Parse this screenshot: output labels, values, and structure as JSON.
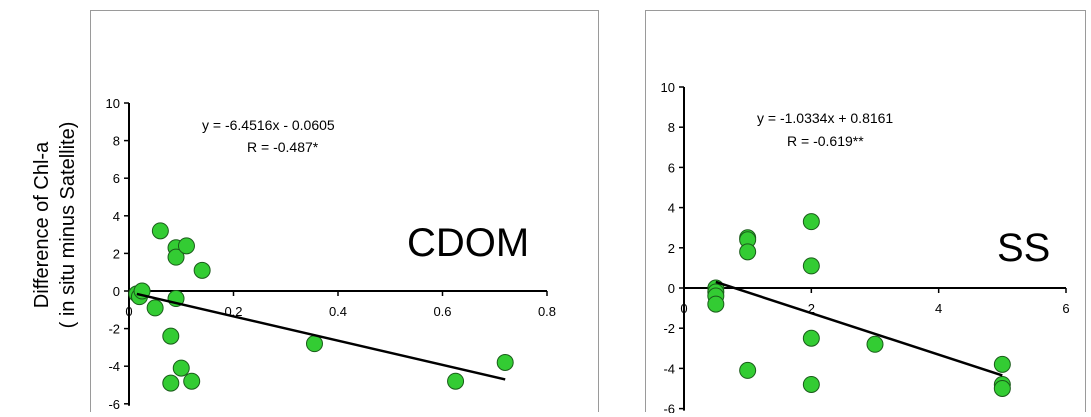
{
  "y_axis_label": {
    "line1": "Difference of Chl-a",
    "line2": "( in situ minus Satellite)"
  },
  "colors": {
    "point_fill": "#33cc33",
    "point_stroke": "#1a5c1a",
    "line": "#000000"
  },
  "chart_data": [
    {
      "type": "scatter",
      "panel_label": "CDOM",
      "equation": "y = -6.4516x - 0.0605",
      "r_text": "R = -0.487*",
      "xlim": [
        0,
        0.8
      ],
      "ylim": [
        -6,
        10
      ],
      "x_ticks": [
        0,
        0.2,
        0.4,
        0.6,
        0.8
      ],
      "x_tick_labels": [
        "0",
        "0.2",
        "0.4",
        "0.6",
        "0.8"
      ],
      "y_ticks": [
        -6,
        -4,
        -2,
        0,
        2,
        4,
        6,
        8,
        10
      ],
      "y_tick_labels": [
        "-6",
        "-4",
        "-2",
        "0",
        "2",
        "4",
        "6",
        "8",
        "10"
      ],
      "points": [
        {
          "x": 0.015,
          "y": -0.15
        },
        {
          "x": 0.02,
          "y": -0.3
        },
        {
          "x": 0.025,
          "y": 0.0
        },
        {
          "x": 0.05,
          "y": -0.9
        },
        {
          "x": 0.06,
          "y": 3.2
        },
        {
          "x": 0.08,
          "y": -2.4
        },
        {
          "x": 0.08,
          "y": -4.9
        },
        {
          "x": 0.09,
          "y": 2.3
        },
        {
          "x": 0.09,
          "y": 1.8
        },
        {
          "x": 0.09,
          "y": -0.4
        },
        {
          "x": 0.1,
          "y": -4.1
        },
        {
          "x": 0.11,
          "y": 2.4
        },
        {
          "x": 0.12,
          "y": -4.8
        },
        {
          "x": 0.14,
          "y": 1.1
        },
        {
          "x": 0.355,
          "y": -2.8
        },
        {
          "x": 0.625,
          "y": -4.8
        },
        {
          "x": 0.72,
          "y": -3.8
        }
      ],
      "trendline": {
        "slope": -6.4516,
        "intercept": -0.0605,
        "x_start": 0.015,
        "x_end": 0.72
      }
    },
    {
      "type": "scatter",
      "panel_label": "SS",
      "equation": "y = -1.0334x + 0.8161",
      "r_text": "R = -0.619**",
      "xlim": [
        0,
        6
      ],
      "ylim": [
        -6,
        10
      ],
      "x_ticks": [
        0,
        2,
        4,
        6
      ],
      "x_tick_labels": [
        "0",
        "2",
        "4",
        "6"
      ],
      "y_ticks": [
        -6,
        -4,
        -2,
        0,
        2,
        4,
        6,
        8,
        10
      ],
      "y_tick_labels": [
        "-6",
        "-4",
        "-2",
        "0",
        "2",
        "4",
        "6",
        "8",
        "10"
      ],
      "points": [
        {
          "x": 0.5,
          "y": 0.0
        },
        {
          "x": 0.5,
          "y": -0.2
        },
        {
          "x": 0.5,
          "y": -0.4
        },
        {
          "x": 0.5,
          "y": -0.8
        },
        {
          "x": 1.0,
          "y": 2.5
        },
        {
          "x": 1.0,
          "y": 2.4
        },
        {
          "x": 1.0,
          "y": 1.8
        },
        {
          "x": 1.0,
          "y": -4.1
        },
        {
          "x": 2.0,
          "y": 3.3
        },
        {
          "x": 2.0,
          "y": 1.1
        },
        {
          "x": 2.0,
          "y": -2.5
        },
        {
          "x": 2.0,
          "y": -4.8
        },
        {
          "x": 3.0,
          "y": -2.8
        },
        {
          "x": 5.0,
          "y": -3.8
        },
        {
          "x": 5.0,
          "y": -4.8
        },
        {
          "x": 5.0,
          "y": -5.0
        }
      ],
      "trendline": {
        "slope": -1.0334,
        "intercept": 0.8161,
        "x_start": 0.5,
        "x_end": 5.0
      }
    }
  ]
}
